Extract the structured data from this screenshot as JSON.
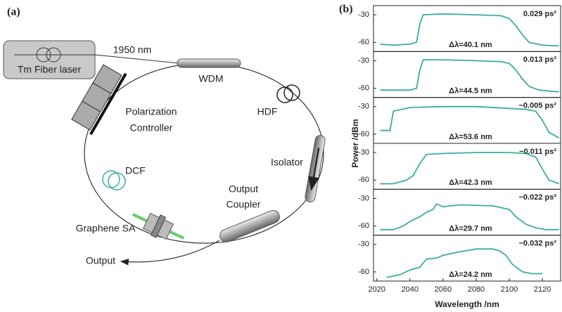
{
  "panel_a": {
    "label": "(a)",
    "wavelength": "1950 nm",
    "laser": "Tm Fiber laser",
    "wdm": "WDM",
    "hdf": "HDF",
    "polarization_controller": [
      "Polarization",
      "Controller"
    ],
    "isolator": "Isolator",
    "dcf": "DCF",
    "output_coupler": [
      "Output",
      "Coupler"
    ],
    "graphene_sa": "Graphene SA",
    "output": "Output"
  },
  "panel_b": {
    "label": "(b)",
    "ylabel": "Power /dBm",
    "xlabel": "Wavelength /nm"
  },
  "chart_data": [
    {
      "type": "line",
      "color": "#3aada0",
      "xlim": [
        2018,
        2131
      ],
      "ylim": [
        -70,
        -20
      ],
      "yticks": [
        -30,
        -60
      ],
      "annotation": "0.029 ps²",
      "bandwidth": "Δλ=40.1 nm",
      "x": [
        2022,
        2030,
        2040,
        2044,
        2046,
        2048,
        2060,
        2080,
        2095,
        2100,
        2104,
        2108,
        2112,
        2120,
        2130
      ],
      "values": [
        -62,
        -63,
        -62,
        -60,
        -40,
        -30,
        -29,
        -30,
        -31,
        -34,
        -42,
        -52,
        -60,
        -63,
        -64
      ]
    },
    {
      "type": "line",
      "color": "#3aada0",
      "xlim": [
        2018,
        2131
      ],
      "ylim": [
        -70,
        -20
      ],
      "yticks": [
        -30,
        -60
      ],
      "annotation": "0.013 ps²",
      "bandwidth": "Δλ=44.5 nm",
      "x": [
        2022,
        2040,
        2044,
        2046,
        2048,
        2060,
        2080,
        2095,
        2100,
        2104,
        2108,
        2112,
        2118,
        2130
      ],
      "values": [
        -62,
        -62,
        -60,
        -40,
        -29,
        -29,
        -30,
        -31,
        -33,
        -40,
        -50,
        -58,
        -62,
        -64
      ]
    },
    {
      "type": "line",
      "color": "#3aada0",
      "xlim": [
        2018,
        2131
      ],
      "ylim": [
        -70,
        -20
      ],
      "yticks": [
        -30,
        -60
      ],
      "annotation": "−0.005 ps²",
      "bandwidth": "Δλ=53.6 nm",
      "x": [
        2022,
        2028,
        2030,
        2040,
        2060,
        2080,
        2100,
        2110,
        2116,
        2120,
        2124,
        2130
      ],
      "values": [
        -56,
        -56,
        -35,
        -31,
        -30,
        -30,
        -32,
        -33,
        -35,
        -45,
        -58,
        -64
      ]
    },
    {
      "type": "line",
      "color": "#3aada0",
      "xlim": [
        2018,
        2131
      ],
      "ylim": [
        -70,
        -20
      ],
      "yticks": [
        -30,
        -60
      ],
      "annotation": "−0.011 ps²",
      "bandwidth": "Δλ=42.3 nm",
      "x": [
        2022,
        2030,
        2038,
        2042,
        2046,
        2050,
        2060,
        2080,
        2100,
        2110,
        2116,
        2120,
        2124,
        2130
      ],
      "values": [
        -64,
        -64,
        -60,
        -55,
        -42,
        -32,
        -31,
        -30,
        -30,
        -31,
        -35,
        -48,
        -60,
        -64
      ]
    },
    {
      "type": "line",
      "color": "#3aada0",
      "xlim": [
        2018,
        2131
      ],
      "ylim": [
        -70,
        -20
      ],
      "yticks": [
        -30,
        -60
      ],
      "annotation": "−0.022 ps²",
      "bandwidth": "Δλ=29.7 nm",
      "x": [
        2022,
        2030,
        2036,
        2040,
        2046,
        2050,
        2054,
        2056,
        2060,
        2070,
        2090,
        2100,
        2104,
        2110,
        2116,
        2122,
        2130
      ],
      "values": [
        -64,
        -64,
        -60,
        -55,
        -50,
        -45,
        -42,
        -36,
        -39,
        -37,
        -38,
        -42,
        -50,
        -58,
        -62,
        -64,
        -64
      ]
    },
    {
      "type": "line",
      "color": "#3aada0",
      "xlim": [
        2018,
        2131
      ],
      "ylim": [
        -70,
        -20
      ],
      "yticks": [
        -30,
        -60
      ],
      "xticks": [
        2020,
        2040,
        2060,
        2080,
        2100,
        2120
      ],
      "annotation": "−0.032 ps²",
      "bandwidth": "Δλ=24.2 nm",
      "x": [
        2026,
        2034,
        2040,
        2046,
        2050,
        2056,
        2060,
        2070,
        2080,
        2090,
        2094,
        2098,
        2102,
        2108,
        2114,
        2120
      ],
      "values": [
        -66,
        -63,
        -58,
        -55,
        -46,
        -45,
        -42,
        -38,
        -35,
        -35,
        -37,
        -42,
        -52,
        -60,
        -62,
        -62
      ]
    }
  ]
}
